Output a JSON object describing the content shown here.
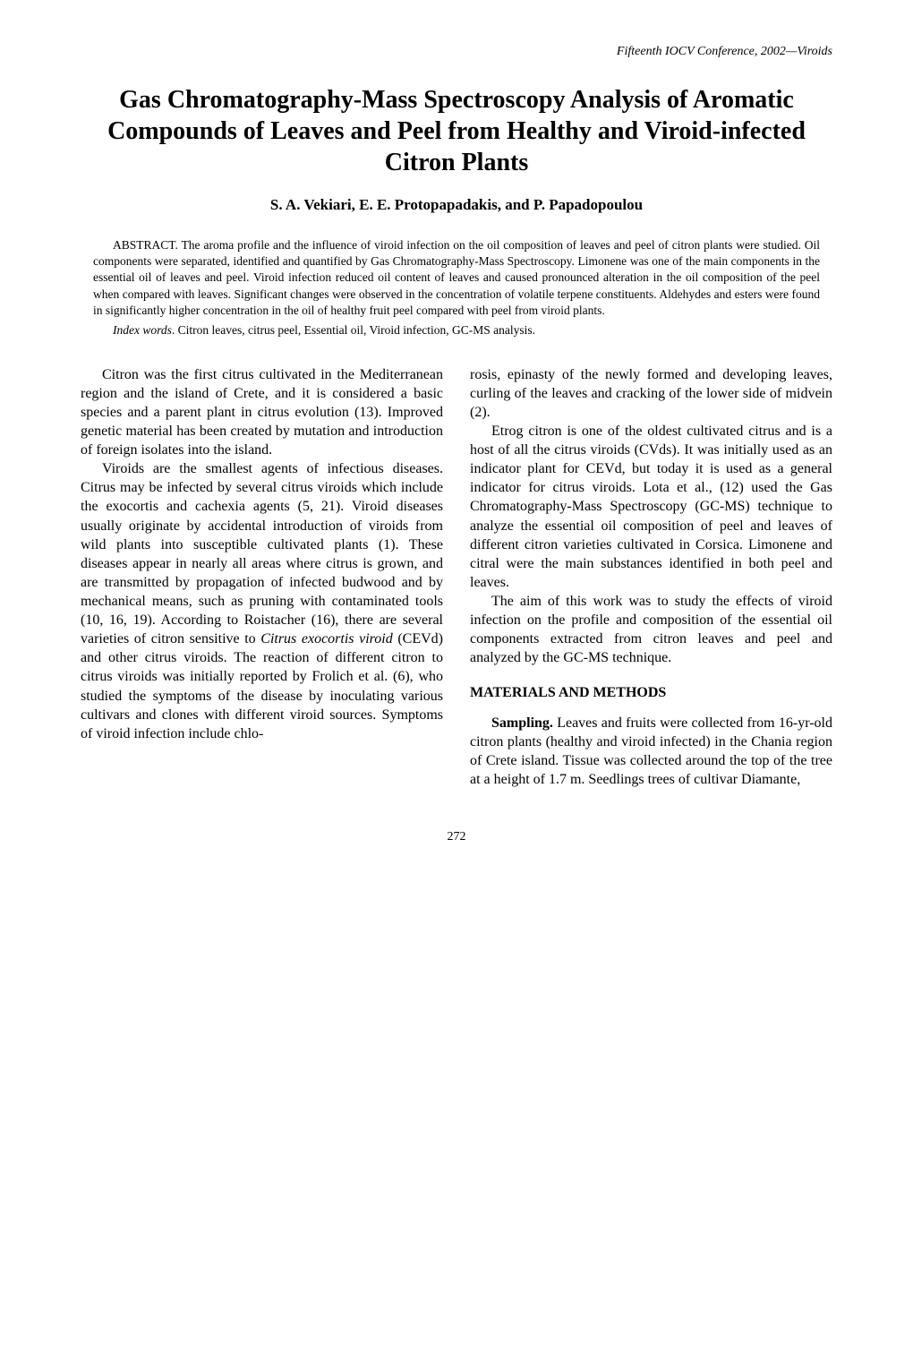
{
  "running_head": "Fifteenth IOCV Conference, 2002—Viroids",
  "title": "Gas Chromatography-Mass Spectroscopy Analysis of Aromatic Compounds of Leaves and Peel from Healthy and Viroid-infected Citron Plants",
  "authors": "S. A. Vekiari, E. E. Protopapadakis, and P. Papadopoulou",
  "abstract": "ABSTRACT. The aroma profile and the influence of viroid infection on the oil composition of leaves and peel of citron plants were studied. Oil components were separated, identified and quantified by Gas Chromatography-Mass Spectroscopy. Limonene was one of the main components in the essential oil of leaves and peel. Viroid infection reduced oil content of leaves and caused pronounced alteration in the oil composition of the peel when compared with leaves. Significant changes were observed in the concentration of volatile terpene constituents. Aldehydes and esters were found in significantly higher concentration in the oil of healthy fruit peel compared with peel from viroid plants.",
  "index_words_label": "Index words",
  "index_words": ". Citron leaves, citrus peel, Essential oil, Viroid infection, GC-MS analysis.",
  "left_col": {
    "p1": "Citron was the first citrus cultivated in the Mediterranean region and the island of Crete, and it is considered a basic species and a parent plant in citrus evolution (13). Improved genetic material has been created by mutation and introduction of foreign isolates into the island.",
    "p2a": "Viroids are the smallest agents of infectious diseases. Citrus may be infected by several citrus viroids which include the exocortis and cachexia agents (5, 21). Viroid diseases usually originate by accidental introduction of viroids from wild plants into susceptible cultivated plants (1). These diseases appear in nearly all areas where citrus is grown, and are transmitted by propagation of infected budwood and by mechanical means, such as pruning with contaminated tools (10, 16, 19). According to Roistacher (16), there are several varieties of citron sensitive to ",
    "p2b_italic": "Citrus exocortis viroid",
    "p2c": " (CEVd) and other citrus viroids. The reaction of different citron to citrus viroids was initially reported by Frolich et al. (6), who studied the symptoms of the disease by inoculating various cultivars and clones with different viroid sources. Symptoms of viroid infection include chlo-"
  },
  "right_col": {
    "p1": "rosis, epinasty of the newly formed and developing leaves, curling of the leaves and cracking of the lower side of midvein (2).",
    "p2": "Etrog citron is one of the oldest cultivated citrus and is a host of all the citrus viroids (CVds). It was initially used as an indicator plant for CEVd, but today it is used as a general indicator for citrus viroids. Lota et al., (12) used the Gas Chromatography-Mass Spectroscopy (GC-MS) technique to analyze the essential oil composition of peel and leaves of different citron varieties cultivated in Corsica. Limonene and citral were the main substances identified in both peel and leaves.",
    "p3": "The aim of this work was to study the effects of viroid infection on the profile and composition of the essential oil components extracted from citron leaves and peel and analyzed by the GC-MS technique.",
    "section_head": "MATERIALS AND METHODS",
    "p4a_bold": "Sampling.",
    "p4b": " Leaves and fruits were collected from 16-yr-old citron plants (healthy and viroid infected) in the Chania region of Crete island. Tissue was collected around the top of the tree at a height of 1.7 m. Seedlings trees of cultivar Diamante,"
  },
  "page_num": "272"
}
